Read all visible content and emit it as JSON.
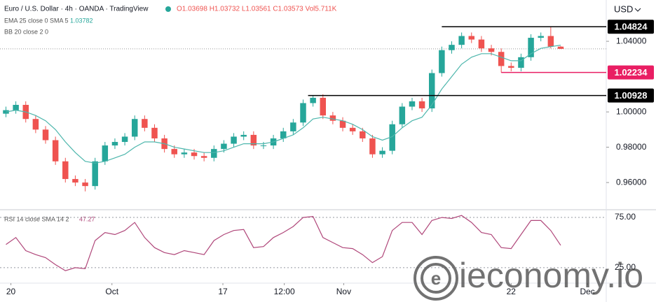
{
  "chart_data": {
    "type": "candlestick",
    "title": "Euro / U.S. Dollar · 4h · OANDA · TradingView",
    "ohlc_header": "O1.03698 H1.03732 L1.03561 C1.03573 Vol5.711K",
    "currency": "USD",
    "indicator_ema_label": "EMA 25 close 0 SMA 5",
    "indicator_bb_label": "BB 20 close 2 0",
    "rsi_label": "RSI 14 close SMA 14 2",
    "watermark": "ieconomy.io",
    "up_color": "#26a69a",
    "down_color": "#ef5350",
    "open": [
      0.999,
      1.001,
      1.004,
      0.996,
      0.99,
      0.984,
      0.972,
      0.962,
      0.96,
      0.958,
      0.972,
      0.981,
      0.983,
      0.986,
      0.996,
      0.991,
      0.985,
      0.979,
      0.976,
      0.977,
      0.975,
      0.974,
      0.979,
      0.982,
      0.986,
      0.987,
      0.981,
      0.981,
      0.985,
      0.989,
      0.994,
      1.005,
      1.008,
      0.998,
      0.995,
      0.991,
      0.989,
      0.985,
      0.976,
      0.978,
      0.993,
      1.003,
      1.006,
      1.002,
      1.022,
      1.035,
      1.038,
      1.043,
      1.041,
      1.036,
      1.034,
      1.026,
      1.025,
      1.031,
      1.042,
      1.043,
      1.03698
    ],
    "high": [
      1.003,
      1.006,
      1.006,
      0.998,
      0.992,
      0.986,
      0.974,
      0.964,
      0.962,
      0.974,
      0.983,
      0.985,
      0.988,
      0.998,
      0.998,
      0.993,
      0.987,
      0.981,
      0.979,
      0.979,
      0.977,
      0.981,
      0.984,
      0.988,
      0.989,
      0.989,
      0.983,
      0.987,
      0.991,
      0.996,
      1.007,
      1.0093,
      1.01,
      1.0,
      0.997,
      0.993,
      0.991,
      0.987,
      0.98,
      0.995,
      1.005,
      1.008,
      1.008,
      1.024,
      1.037,
      1.04,
      1.045,
      1.045,
      1.043,
      1.038,
      1.036,
      1.028,
      1.033,
      1.044,
      1.045,
      1.04824,
      1.03732
    ],
    "low": [
      0.997,
      0.999,
      0.994,
      0.988,
      0.982,
      0.97,
      0.96,
      0.958,
      0.955,
      0.956,
      0.97,
      0.979,
      0.981,
      0.984,
      0.989,
      0.983,
      0.977,
      0.974,
      0.974,
      0.973,
      0.972,
      0.972,
      0.977,
      0.98,
      0.984,
      0.979,
      0.979,
      0.979,
      0.983,
      0.987,
      0.992,
      1.003,
      0.996,
      0.993,
      0.989,
      0.987,
      0.983,
      0.974,
      0.974,
      0.976,
      0.991,
      1.001,
      1.0,
      1.0,
      1.02,
      1.033,
      1.036,
      1.039,
      1.034,
      1.032,
      1.02234,
      1.023,
      1.023,
      1.029,
      1.04,
      1.036,
      1.03561
    ],
    "close": [
      1.001,
      1.004,
      0.996,
      0.99,
      0.984,
      0.972,
      0.962,
      0.96,
      0.958,
      0.972,
      0.981,
      0.983,
      0.986,
      0.996,
      0.991,
      0.985,
      0.979,
      0.976,
      0.977,
      0.975,
      0.974,
      0.979,
      0.982,
      0.986,
      0.987,
      0.981,
      0.981,
      0.985,
      0.989,
      0.994,
      1.005,
      1.008,
      0.998,
      0.995,
      0.991,
      0.989,
      0.985,
      0.976,
      0.978,
      0.993,
      1.003,
      1.006,
      1.002,
      1.022,
      1.035,
      1.038,
      1.043,
      1.041,
      1.036,
      1.034,
      1.026,
      1.025,
      1.031,
      1.042,
      1.043,
      1.037,
      1.03573
    ],
    "ema": {
      "color": "#4db6ac",
      "values": [
        1.0,
        1.001,
        1.0,
        0.998,
        0.995,
        0.99,
        0.983,
        0.977,
        0.972,
        0.971,
        0.972,
        0.974,
        0.976,
        0.98,
        0.983,
        0.983,
        0.982,
        0.98,
        0.979,
        0.978,
        0.977,
        0.977,
        0.978,
        0.98,
        0.982,
        0.982,
        0.982,
        0.983,
        0.985,
        0.987,
        0.991,
        0.996,
        0.997,
        0.996,
        0.995,
        0.993,
        0.99,
        0.986,
        0.984,
        0.986,
        0.991,
        0.995,
        0.997,
        1.004,
        1.013,
        1.02,
        1.027,
        1.031,
        1.033,
        1.033,
        1.031,
        1.029,
        1.029,
        1.033,
        1.036,
        1.037,
        1.03782
      ]
    },
    "rsi": {
      "color": "#b0477a",
      "values": [
        48,
        55,
        42,
        38,
        35,
        28,
        22,
        25,
        24,
        52,
        60,
        58,
        62,
        70,
        55,
        45,
        40,
        38,
        42,
        40,
        38,
        52,
        58,
        62,
        63,
        45,
        46,
        55,
        60,
        66,
        75,
        76,
        55,
        50,
        45,
        44,
        38,
        30,
        36,
        62,
        70,
        70,
        58,
        72,
        75,
        74,
        77,
        70,
        60,
        58,
        45,
        44,
        58,
        72,
        72,
        62,
        47.27
      ]
    },
    "levels": [
      {
        "value": 1.04824,
        "from": 44,
        "color": "#000000"
      },
      {
        "value": 1.02234,
        "from": 50,
        "color": "#e91e63"
      },
      {
        "value": 1.00928,
        "from": 30.5,
        "color": "#000000"
      }
    ],
    "xlim": [
      -0.6,
      60.6
    ],
    "xticks": [
      {
        "value": 0.5,
        "label": "20"
      },
      {
        "value": 10.7,
        "label": "Oct"
      },
      {
        "value": 21.9,
        "label": "17"
      },
      {
        "value": 28.1,
        "label": "12:00"
      },
      {
        "value": 34.1,
        "label": "Nov"
      },
      {
        "value": 51,
        "label": "22"
      },
      {
        "value": 58.7,
        "label": "Dec"
      }
    ],
    "ylim": [
      0.9446,
      1.0634
    ],
    "yticks": [
      {
        "value": 1.04,
        "label": "1.04000"
      },
      {
        "value": 1.0,
        "label": "1.00000"
      },
      {
        "value": 0.98,
        "label": "0.98000"
      },
      {
        "value": 0.96,
        "label": "0.96000"
      }
    ],
    "rsi_ylim": [
      9.6,
      82.7
    ],
    "rsi_yticks": [
      {
        "value": 75,
        "label": "75.00"
      },
      {
        "value": 25,
        "label": "25.00"
      }
    ]
  }
}
